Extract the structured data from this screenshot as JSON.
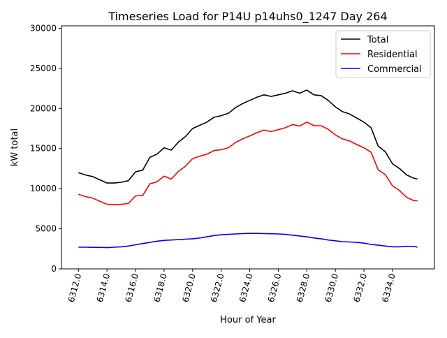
{
  "chart_data": {
    "type": "line",
    "title": "Timeseries Load for P14U p14uhs0_1247  Day 264",
    "xlabel": "Hour of Year",
    "ylabel": "kW total",
    "xlim": [
      6310.81,
      6336.94
    ],
    "ylim": [
      0,
      30300
    ],
    "grid": false,
    "legend_position": "top-right",
    "xticks": [
      6312,
      6314,
      6316,
      6318,
      6320,
      6322,
      6324,
      6326,
      6328,
      6330,
      6332,
      6334
    ],
    "xtick_labels": [
      "6312.0",
      "6314.0",
      "6316.0",
      "6318.0",
      "6320.0",
      "6322.0",
      "6324.0",
      "6326.0",
      "6328.0",
      "6330.0",
      "6332.0",
      "6334.0"
    ],
    "yticks": [
      0,
      5000,
      10000,
      15000,
      20000,
      25000,
      30000
    ],
    "ytick_labels": [
      "0",
      "5000",
      "10000",
      "15000",
      "20000",
      "25000",
      "30000"
    ],
    "x": [
      6312,
      6312.5,
      6313,
      6313.5,
      6314,
      6314.5,
      6315,
      6315.5,
      6316,
      6316.5,
      6317,
      6317.5,
      6318,
      6318.5,
      6319,
      6319.5,
      6320,
      6320.5,
      6321,
      6321.5,
      6322,
      6322.5,
      6323,
      6323.5,
      6324,
      6324.5,
      6325,
      6325.5,
      6326,
      6326.5,
      6327,
      6327.5,
      6328,
      6328.5,
      6329,
      6329.5,
      6330,
      6330.5,
      6331,
      6331.5,
      6332,
      6332.5,
      6333,
      6333.5,
      6334,
      6334.5,
      6335,
      6335.5,
      6335.75
    ],
    "series": [
      {
        "name": "Total",
        "color": "#000000",
        "values": [
          12000,
          11700,
          11500,
          11100,
          10700,
          10700,
          10800,
          11000,
          12100,
          12300,
          13900,
          14300,
          15100,
          14800,
          15800,
          16500,
          17500,
          17900,
          18300,
          18900,
          19100,
          19400,
          20100,
          20600,
          21000,
          21400,
          21700,
          21500,
          21700,
          21900,
          22200,
          21900,
          22300,
          21700,
          21600,
          21000,
          20200,
          19600,
          19300,
          18800,
          18300,
          17600,
          15300,
          14600,
          13100,
          12500,
          11700,
          11300,
          11200
        ]
      },
      {
        "name": "Residential",
        "color": "#ff0000",
        "values": [
          9300,
          9000,
          8820,
          8420,
          8050,
          8000,
          8050,
          8150,
          9100,
          9150,
          10600,
          10850,
          11550,
          11200,
          12150,
          12800,
          13750,
          14050,
          14300,
          14750,
          14850,
          15100,
          15750,
          16200,
          16580,
          16980,
          17300,
          17120,
          17350,
          17600,
          18000,
          17800,
          18300,
          17850,
          17850,
          17400,
          16700,
          16200,
          15950,
          15500,
          15100,
          14550,
          12350,
          11750,
          10350,
          9750,
          8900,
          8500,
          8500
        ]
      },
      {
        "name": "Commercial",
        "color": "#0000ff",
        "values": [
          2700,
          2700,
          2680,
          2680,
          2650,
          2700,
          2750,
          2850,
          3000,
          3150,
          3300,
          3450,
          3550,
          3600,
          3650,
          3700,
          3750,
          3850,
          4000,
          4150,
          4250,
          4300,
          4350,
          4400,
          4420,
          4420,
          4400,
          4380,
          4350,
          4300,
          4200,
          4100,
          4000,
          3850,
          3750,
          3600,
          3500,
          3400,
          3350,
          3300,
          3200,
          3050,
          2950,
          2850,
          2750,
          2750,
          2800,
          2800,
          2700
        ]
      }
    ]
  }
}
